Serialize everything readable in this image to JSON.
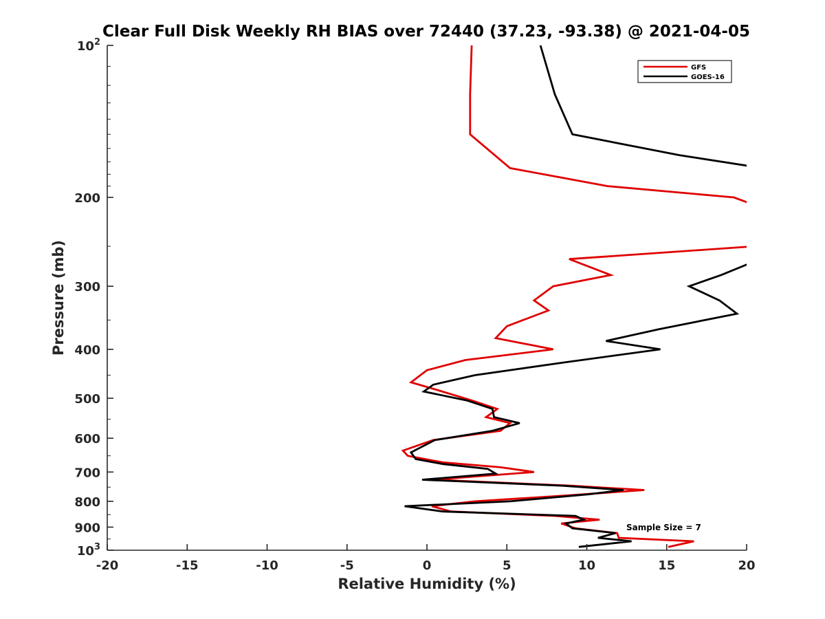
{
  "chart_data": {
    "type": "line",
    "title": "Clear Full Disk Weekly RH BIAS over 72440 (37.23, -93.38) @ 2021-04-05",
    "xlabel": "Relative Humidity (%)",
    "ylabel": "Pressure (mb)",
    "xlim": [
      -20,
      20
    ],
    "ylim": [
      100,
      1000
    ],
    "yscale": "log",
    "y_reversed": true,
    "grid": false,
    "legend_position": "top-right",
    "x_ticks": [
      "-20",
      "-15",
      "-10",
      "-5",
      "0",
      "5",
      "10",
      "15",
      "20"
    ],
    "y_tick_labels": [
      {
        "value": 100,
        "base": "10",
        "exp": "2"
      },
      {
        "value": 200,
        "base": "200",
        "exp": ""
      },
      {
        "value": 300,
        "base": "300",
        "exp": ""
      },
      {
        "value": 400,
        "base": "400",
        "exp": ""
      },
      {
        "value": 500,
        "base": "500",
        "exp": ""
      },
      {
        "value": 600,
        "base": "600",
        "exp": ""
      },
      {
        "value": 700,
        "base": "700",
        "exp": ""
      },
      {
        "value": 800,
        "base": "800",
        "exp": ""
      },
      {
        "value": 900,
        "base": "900",
        "exp": ""
      },
      {
        "value": 1000,
        "base": "10",
        "exp": "3"
      }
    ],
    "annotation": "Sample Size = 7",
    "series": [
      {
        "name": "GFS",
        "color": "#e00000",
        "points": [
          [
            2.8,
            100
          ],
          [
            2.7,
            125
          ],
          [
            2.7,
            150
          ],
          [
            5.2,
            175
          ],
          [
            11.3,
            190
          ],
          [
            19.2,
            200
          ],
          [
            21.0,
            210
          ],
          [
            20.5,
            250
          ],
          [
            8.9,
            265
          ],
          [
            11.5,
            285
          ],
          [
            7.9,
            300
          ],
          [
            6.7,
            320
          ],
          [
            7.6,
            335
          ],
          [
            5.0,
            360
          ],
          [
            4.3,
            380
          ],
          [
            7.9,
            400
          ],
          [
            2.4,
            420
          ],
          [
            0.0,
            440
          ],
          [
            -1.0,
            465
          ],
          [
            0.5,
            480
          ],
          [
            2.8,
            505
          ],
          [
            4.4,
            525
          ],
          [
            3.7,
            545
          ],
          [
            5.2,
            560
          ],
          [
            4.6,
            580
          ],
          [
            0.4,
            605
          ],
          [
            -1.5,
            635
          ],
          [
            -1.2,
            650
          ],
          [
            1.0,
            670
          ],
          [
            4.6,
            685
          ],
          [
            6.7,
            700
          ],
          [
            0.4,
            725
          ],
          [
            9.0,
            745
          ],
          [
            13.6,
            760
          ],
          [
            8.5,
            780
          ],
          [
            3.0,
            800
          ],
          [
            0.3,
            818
          ],
          [
            1.5,
            838
          ],
          [
            8.0,
            855
          ],
          [
            10.8,
            870
          ],
          [
            8.4,
            885
          ],
          [
            9.3,
            905
          ],
          [
            11.9,
            925
          ],
          [
            12.0,
            945
          ],
          [
            16.7,
            960
          ],
          [
            15.1,
            985
          ]
        ]
      },
      {
        "name": "GOES-16",
        "color": "#000000",
        "points": [
          [
            7.1,
            100
          ],
          [
            8.0,
            125
          ],
          [
            9.1,
            150
          ],
          [
            15.8,
            165
          ],
          [
            21.0,
            175
          ],
          [
            21.5,
            260
          ],
          [
            18.4,
            285
          ],
          [
            16.4,
            300
          ],
          [
            18.3,
            320
          ],
          [
            19.4,
            340
          ],
          [
            14.5,
            365
          ],
          [
            11.2,
            385
          ],
          [
            14.6,
            400
          ],
          [
            8.5,
            425
          ],
          [
            3.0,
            450
          ],
          [
            0.4,
            470
          ],
          [
            -0.2,
            485
          ],
          [
            2.5,
            505
          ],
          [
            4.1,
            525
          ],
          [
            4.2,
            545
          ],
          [
            5.8,
            560
          ],
          [
            4.1,
            580
          ],
          [
            0.5,
            605
          ],
          [
            -1.0,
            640
          ],
          [
            -0.7,
            660
          ],
          [
            1.0,
            675
          ],
          [
            3.8,
            690
          ],
          [
            4.3,
            705
          ],
          [
            -0.3,
            725
          ],
          [
            8.5,
            745
          ],
          [
            12.3,
            760
          ],
          [
            10.1,
            775
          ],
          [
            5.2,
            800
          ],
          [
            -1.4,
            818
          ],
          [
            1.0,
            838
          ],
          [
            9.3,
            855
          ],
          [
            9.8,
            870
          ],
          [
            8.7,
            885
          ],
          [
            9.1,
            905
          ],
          [
            11.8,
            925
          ],
          [
            10.7,
            945
          ],
          [
            12.8,
            960
          ],
          [
            9.5,
            985
          ]
        ]
      }
    ]
  }
}
